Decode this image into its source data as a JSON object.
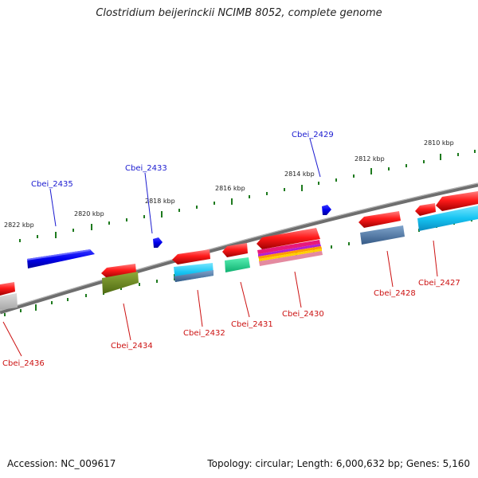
{
  "title": "Clostridium beijerinckii NCIMB 8052, complete genome",
  "footer": {
    "accession": "Accession: NC_009617",
    "summary": "Topology: circular; Length: 6,000,632 bp; Genes: 5,160"
  },
  "colors": {
    "backbone": "#7a7a7a",
    "forward_label": "#1a1ad0",
    "reverse_label": "#cc1111",
    "tick": "#1e7a1e",
    "forward_gene": "#0a0ae8",
    "reverse_gene": "#ee1111"
  },
  "scale_labels": [
    "2822 kbp",
    "2820 kbp",
    "2818 kbp",
    "2816 kbp",
    "2814 kbp",
    "2812 kbp",
    "2810 kbp"
  ],
  "forward_labels": [
    "Cbei_2435",
    "Cbei_2433",
    "Cbei_2429"
  ],
  "reverse_labels": [
    "Cbei_2436",
    "Cbei_2434",
    "Cbei_2432",
    "Cbei_2431",
    "Cbei_2430",
    "Cbei_2428",
    "Cbei_2427"
  ]
}
